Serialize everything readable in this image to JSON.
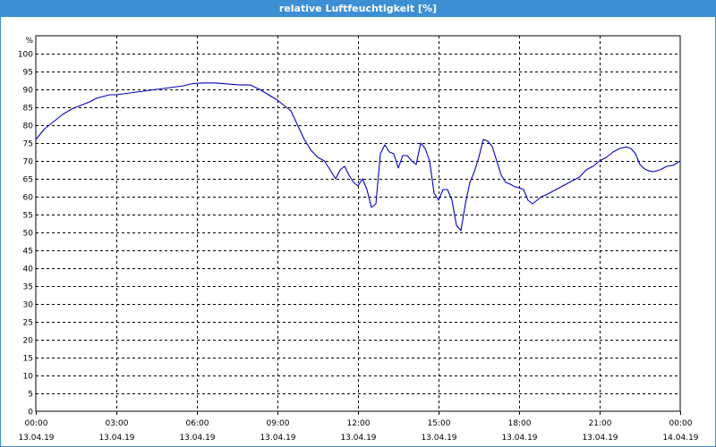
{
  "window": {
    "title": "relative Luftfeuchtigkeit [%]"
  },
  "colors": {
    "titlebar": "#3c8fd2",
    "line": "#0000c0",
    "grid": "#000000"
  },
  "chart_data": {
    "type": "line",
    "title": "relative Luftfeuchtigkeit [%]",
    "ylabel": "%",
    "xlabel": "",
    "ylim": [
      0,
      100
    ],
    "yticks": [
      0,
      5,
      10,
      15,
      20,
      25,
      30,
      35,
      40,
      45,
      50,
      55,
      60,
      65,
      70,
      75,
      80,
      85,
      90,
      95,
      100
    ],
    "xlim": [
      "13.04.19 00:00",
      "14.04.19 00:00"
    ],
    "xticks": [
      {
        "time": "00:00",
        "date": "13.04.19"
      },
      {
        "time": "03:00",
        "date": "13.04.19"
      },
      {
        "time": "06:00",
        "date": "13.04.19"
      },
      {
        "time": "09:00",
        "date": "13.04.19"
      },
      {
        "time": "12:00",
        "date": "13.04.19"
      },
      {
        "time": "15:00",
        "date": "13.04.19"
      },
      {
        "time": "18:00",
        "date": "13.04.19"
      },
      {
        "time": "21:00",
        "date": "13.04.19"
      },
      {
        "time": "00:00",
        "date": "14.04.19"
      }
    ],
    "grid": true,
    "series": [
      {
        "x": [
          "00:00",
          "00:10",
          "00:20",
          "00:30",
          "00:45",
          "01:00",
          "01:20",
          "01:40",
          "02:00",
          "02:15",
          "02:30",
          "02:45",
          "03:00",
          "03:30",
          "04:00",
          "04:30",
          "05:00",
          "05:30",
          "05:45",
          "06:00",
          "06:20",
          "06:40",
          "07:00",
          "07:30",
          "08:00",
          "08:20",
          "08:40",
          "09:00",
          "09:30",
          "09:45",
          "10:00",
          "10:15",
          "10:30",
          "10:45",
          "11:00",
          "11:10",
          "11:20",
          "11:30",
          "11:40",
          "11:50",
          "12:00",
          "12:10",
          "12:20",
          "12:30",
          "12:40",
          "12:50",
          "13:00",
          "13:10",
          "13:20",
          "13:30",
          "13:40",
          "13:50",
          "14:00",
          "14:10",
          "14:20",
          "14:30",
          "14:40",
          "14:50",
          "15:00",
          "15:10",
          "15:20",
          "15:30",
          "15:40",
          "15:50",
          "16:00",
          "16:10",
          "16:20",
          "16:30",
          "16:40",
          "16:50",
          "17:00",
          "17:10",
          "17:20",
          "17:30",
          "17:40",
          "17:50",
          "18:00",
          "18:10",
          "18:20",
          "18:30",
          "18:40",
          "18:50",
          "19:00",
          "19:15",
          "19:30",
          "19:45",
          "20:00",
          "20:15",
          "20:30",
          "20:45",
          "21:00",
          "21:15",
          "21:30",
          "21:45",
          "22:00",
          "22:10",
          "22:20",
          "22:30",
          "22:40",
          "22:50",
          "23:00",
          "23:15",
          "23:30",
          "23:45",
          "24:00"
        ],
        "values": [
          76,
          77.5,
          79,
          80,
          81.5,
          83,
          84.5,
          85.5,
          86.5,
          87.5,
          88,
          88.5,
          88.5,
          89,
          89.5,
          90,
          90.5,
          91,
          91.5,
          91.7,
          91.8,
          91.8,
          91.6,
          91.3,
          91.2,
          90,
          88.5,
          87,
          84,
          80,
          76,
          73,
          71,
          70,
          67,
          65,
          67.5,
          68.5,
          66,
          64,
          63,
          65,
          62,
          57,
          58,
          72,
          74.5,
          72.5,
          72,
          68,
          71.5,
          71.5,
          70,
          69,
          75,
          73.5,
          70,
          61,
          59,
          62,
          62,
          59,
          52,
          50.5,
          58,
          64,
          67,
          71,
          76,
          75.5,
          74,
          70,
          66,
          64,
          63.5,
          62.8,
          62.5,
          62,
          59,
          58,
          59,
          60,
          60.5,
          61.5,
          62.5,
          63.5,
          64.5,
          65.5,
          67.5,
          68.5,
          70,
          71,
          72.5,
          73.5,
          73.9,
          73.5,
          72,
          69,
          67.8,
          67.2,
          67,
          67.5,
          68.5,
          68.8,
          70
        ]
      }
    ]
  }
}
